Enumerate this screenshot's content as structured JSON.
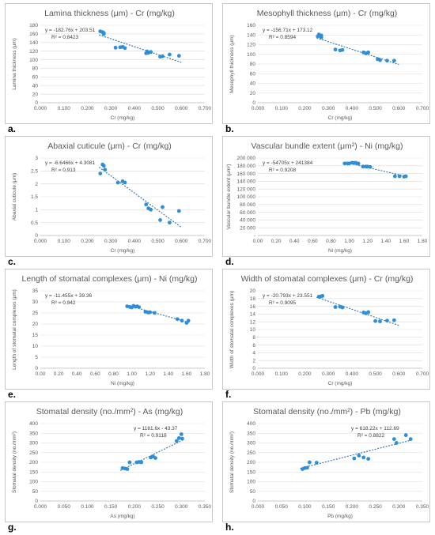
{
  "colors": {
    "point": "#2e8fd6",
    "trend": "#2e6fb0",
    "grid": "#d9d9d9",
    "text": "#595959"
  },
  "chart_data": [
    {
      "type": "scatter",
      "letter": "a.",
      "title": "Lamina thickness (μm) - Cr (mg/kg)",
      "xlabel": "Cr (mg/kg)",
      "ylabel": "Lamina thickness (μm)",
      "xlim": [
        0,
        0.7
      ],
      "ylim": [
        0,
        180
      ],
      "xticks": [
        "0.000",
        "0.100",
        "0.200",
        "0.300",
        "0.400",
        "0.500",
        "0.600",
        "0.700"
      ],
      "yticks": [
        "0",
        "20",
        "40",
        "60",
        "80",
        "100",
        "120",
        "140",
        "160",
        "180"
      ],
      "equation": "y = -182.76x + 203.51",
      "r2": "R² = 0.8423",
      "trendline": {
        "slope": -182.76,
        "intercept": 203.51,
        "x_range": [
          0.25,
          0.6
        ]
      },
      "points": {
        "x": [
          0.255,
          0.265,
          0.27,
          0.27,
          0.32,
          0.34,
          0.35,
          0.36,
          0.45,
          0.455,
          0.46,
          0.47,
          0.51,
          0.52,
          0.55,
          0.59
        ],
        "y": [
          166,
          164,
          162,
          160,
          128,
          129,
          130,
          127,
          115,
          119,
          116,
          118,
          107,
          108,
          112,
          109
        ]
      }
    },
    {
      "type": "scatter",
      "letter": "b.",
      "title": "Mesophyll thickness (μm) - Cr (mg/kg)",
      "xlabel": "Cr (mg/kg)",
      "ylabel": "Mesophyll thickness (μm)",
      "xlim": [
        0,
        0.7
      ],
      "ylim": [
        0,
        160
      ],
      "xticks": [
        "0.000",
        "0.100",
        "0.200",
        "0.300",
        "0.400",
        "0.500",
        "0.600",
        "0.700"
      ],
      "yticks": [
        "0",
        "20",
        "40",
        "60",
        "80",
        "100",
        "120",
        "140",
        "160"
      ],
      "equation": "y = -156.71x + 173.12",
      "r2": "R² = 0.8594",
      "trendline": {
        "slope": -156.71,
        "intercept": 173.12,
        "x_range": [
          0.25,
          0.6
        ]
      },
      "points": {
        "x": [
          0.255,
          0.26,
          0.27,
          0.27,
          0.33,
          0.35,
          0.36,
          0.45,
          0.46,
          0.47,
          0.51,
          0.52,
          0.55,
          0.58
        ],
        "y": [
          137,
          141,
          139,
          135,
          110,
          108,
          109,
          104,
          102,
          104,
          90,
          88,
          87,
          87
        ]
      }
    },
    {
      "type": "scatter",
      "letter": "c.",
      "title": "Abaxial cuticule (μm) - Cr (mg/kg)",
      "xlabel": "Cr (mg/kg)",
      "ylabel": "Abaxial cuticule (μm)",
      "xlim": [
        0,
        0.7
      ],
      "ylim": [
        0,
        3
      ],
      "xticks": [
        "0.000",
        "0.100",
        "0.200",
        "0.300",
        "0.400",
        "0.500",
        "0.600",
        "0.700"
      ],
      "yticks": [
        "0",
        "0.5",
        "1",
        "1.5",
        "2",
        "2.5",
        "3"
      ],
      "equation": "y = -6.6466x + 4.3081",
      "r2": "R² = 0.913",
      "trendline": {
        "slope": -6.6466,
        "intercept": 4.3081,
        "x_range": [
          0.25,
          0.6
        ]
      },
      "points": {
        "x": [
          0.255,
          0.265,
          0.27,
          0.275,
          0.33,
          0.35,
          0.36,
          0.45,
          0.46,
          0.47,
          0.51,
          0.52,
          0.55,
          0.59
        ],
        "y": [
          2.4,
          2.75,
          2.7,
          2.55,
          2.05,
          2.1,
          2.05,
          1.2,
          1.05,
          1.0,
          0.6,
          1.1,
          0.5,
          0.95
        ]
      }
    },
    {
      "type": "scatter",
      "letter": "d.",
      "title": "Vascular bundle extent (μm²) - Ni (mg/kg)",
      "xlabel": "Ni (mg/kg)",
      "ylabel": "Vascular bundle extent (μm²)",
      "xlim": [
        0,
        1.8
      ],
      "ylim": [
        0,
        200000
      ],
      "xticks": [
        "0.00",
        "0.20",
        "0.40",
        "0.60",
        "0.80",
        "1.00",
        "1.20",
        "1.40",
        "1.60",
        "1.80"
      ],
      "yticks": [
        "-",
        "20 000",
        "40 000",
        "60 000",
        "80 000",
        "100 000",
        "120 000",
        "140 000",
        "160 000",
        "180 000",
        "200 000"
      ],
      "equation": "y = -54705x + 241384",
      "r2": "R² = 0.9208",
      "trendline": {
        "slope": -54705,
        "intercept": 241384,
        "x_range": [
          0.95,
          1.63
        ]
      },
      "points": {
        "x": [
          0.95,
          0.98,
          1.0,
          1.03,
          1.05,
          1.07,
          1.1,
          1.15,
          1.18,
          1.2,
          1.23,
          1.5,
          1.55,
          1.6,
          1.62
        ],
        "y": [
          186000,
          186000,
          186000,
          188000,
          187000,
          188000,
          186000,
          178000,
          178000,
          178000,
          177000,
          153000,
          153000,
          152000,
          153000
        ]
      }
    },
    {
      "type": "scatter",
      "letter": "e.",
      "title": "Length of stomatal complexes (μm) - Ni (mg/kg)",
      "xlabel": "Ni (mg/kg)",
      "ylabel": "Length of stomatal complexes (μm)",
      "xlim": [
        0,
        1.8
      ],
      "ylim": [
        0,
        35
      ],
      "xticks": [
        "0.00",
        "0.20",
        "0.40",
        "0.60",
        "0.80",
        "1.00",
        "1.20",
        "1.40",
        "1.60",
        "1.80"
      ],
      "yticks": [
        "0",
        "5",
        "10",
        "15",
        "20",
        "25",
        "30",
        "35"
      ],
      "equation": "y = -11.455x + 39.36",
      "r2": "R² = 0.942",
      "trendline": {
        "slope": -11.455,
        "intercept": 39.36,
        "x_range": [
          0.95,
          1.63
        ]
      },
      "points": {
        "x": [
          0.95,
          0.98,
          1.0,
          1.02,
          1.04,
          1.06,
          1.08,
          1.15,
          1.18,
          1.2,
          1.25,
          1.5,
          1.55,
          1.6,
          1.62
        ],
        "y": [
          28,
          27.7,
          27.5,
          28.2,
          27.8,
          28,
          27.6,
          25.5,
          25.2,
          25.3,
          25,
          22.2,
          21.5,
          20.5,
          21.5
        ]
      }
    },
    {
      "type": "scatter",
      "letter": "f.",
      "title": "Width of stomatal complexes (μm) - Cr (mg/kg)",
      "xlabel": "Cr (mg/kg)",
      "ylabel": "Width of stomatal complexes (μm)",
      "xlim": [
        0,
        0.7
      ],
      "ylim": [
        0,
        20
      ],
      "xticks": [
        "0.000",
        "0.100",
        "0.200",
        "0.300",
        "0.400",
        "0.500",
        "0.600",
        "0.700"
      ],
      "yticks": [
        "0",
        "2",
        "4",
        "6",
        "8",
        "10",
        "12",
        "14",
        "16",
        "18",
        "20"
      ],
      "equation": "y = -20.793x + 23.551",
      "r2": "R² = 0.9095",
      "trendline": {
        "slope": -20.793,
        "intercept": 23.551,
        "x_range": [
          0.25,
          0.6
        ]
      },
      "points": {
        "x": [
          0.26,
          0.27,
          0.275,
          0.33,
          0.35,
          0.36,
          0.45,
          0.46,
          0.47,
          0.5,
          0.52,
          0.55,
          0.58
        ],
        "y": [
          18.5,
          18.6,
          18.7,
          15.8,
          15.9,
          15.7,
          14.4,
          14.2,
          14.5,
          12.2,
          12.1,
          12.3,
          12.4
        ]
      }
    },
    {
      "type": "scatter",
      "letter": "g.",
      "title": "Stomatal density (no./mm²) - As (mg/kg)",
      "xlabel": "As (mg/kg)",
      "ylabel": "Stomatal density (no./mm²)",
      "xlim": [
        0,
        0.35
      ],
      "ylim": [
        0,
        400
      ],
      "xticks": [
        "0.000",
        "0.050",
        "0.100",
        "0.150",
        "0.200",
        "0.250",
        "0.300",
        "0.350"
      ],
      "yticks": [
        "0",
        "50",
        "100",
        "150",
        "200",
        "250",
        "300",
        "350",
        "400"
      ],
      "equation": "y = 1181.6x - 43.37",
      "r2": "R² = 0.9118",
      "trendline": {
        "slope": 1181.6,
        "intercept": -43.37,
        "x_range": [
          0.17,
          0.305
        ]
      },
      "points": {
        "x": [
          0.175,
          0.18,
          0.185,
          0.19,
          0.205,
          0.21,
          0.215,
          0.235,
          0.24,
          0.245,
          0.29,
          0.295,
          0.3,
          0.302
        ],
        "y": [
          170,
          168,
          165,
          200,
          200,
          202,
          200,
          225,
          230,
          222,
          310,
          325,
          345,
          322
        ]
      }
    },
    {
      "type": "scatter",
      "letter": "h.",
      "title": "Stomatal density (no./mm²) - Pb (mg/kg)",
      "xlabel": "Pb (mg/kg)",
      "ylabel": "Stomatal density (no./mm²)",
      "xlim": [
        0,
        0.35
      ],
      "ylim": [
        0,
        400
      ],
      "xticks": [
        "0.000",
        "0.050",
        "0.100",
        "0.150",
        "0.200",
        "0.250",
        "0.300",
        "0.350"
      ],
      "yticks": [
        "0",
        "50",
        "100",
        "150",
        "200",
        "250",
        "300",
        "350",
        "400"
      ],
      "equation": "y = 618.22x + 112.69",
      "r2": "R² = 0.8822",
      "trendline": {
        "slope": 618.22,
        "intercept": 112.69,
        "x_range": [
          0.09,
          0.33
        ]
      },
      "points": {
        "x": [
          0.095,
          0.1,
          0.105,
          0.11,
          0.125,
          0.205,
          0.215,
          0.225,
          0.235,
          0.29,
          0.295,
          0.315,
          0.325
        ],
        "y": [
          165,
          170,
          172,
          200,
          198,
          220,
          235,
          225,
          218,
          320,
          300,
          340,
          320
        ]
      }
    }
  ]
}
